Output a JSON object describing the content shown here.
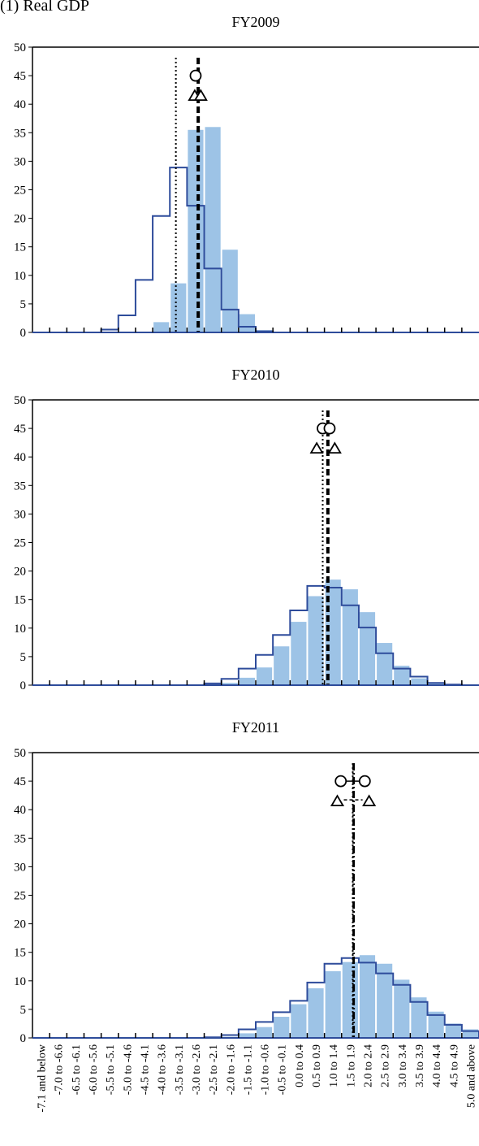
{
  "figure_title": "(1) Real GDP",
  "chart_data": [
    {
      "type": "bar",
      "title": "FY2009",
      "categories": [
        "-7.1 and below",
        "-7.0 to -6.6",
        "-6.5 to -6.1",
        "-6.0 to -5.6",
        "-5.5 to -5.1",
        "-5.0 to -4.6",
        "-4.5 to -4.1",
        "-4.0 to -3.6",
        "-3.5 to -3.1",
        "-3.0 to -2.6",
        "-2.5 to -2.1",
        "-2.0 to -1.6",
        "-1.5 to -1.1",
        "-1.0 to -0.6",
        "-0.5 to -0.1",
        "0.0 to 0.4",
        "0.5 to 0.9",
        "1.0 to 1.4",
        "1.5 to 1.9",
        "2.0 to 2.4",
        "2.5 to 2.9",
        "3.0 to 3.4",
        "3.5 to 3.9",
        "4.0 to 4.4",
        "4.5 to 4.9",
        "5.0 and above"
      ],
      "series": [
        {
          "style": "filled-bars",
          "color": "#9dc3e6",
          "values": [
            0,
            0,
            0,
            0,
            0,
            0,
            0,
            1.8,
            8.6,
            35.5,
            36.0,
            14.5,
            3.2,
            0.4,
            0,
            0,
            0,
            0,
            0,
            0,
            0,
            0,
            0,
            0,
            0,
            0
          ]
        },
        {
          "style": "step-outline",
          "color": "#2e4c9b",
          "values": [
            0,
            0,
            0,
            0,
            0.5,
            3.0,
            9.2,
            20.4,
            28.9,
            22.2,
            11.2,
            4.0,
            1.0,
            0.2,
            0,
            0,
            0,
            0,
            0,
            0,
            0,
            0,
            0,
            0,
            0,
            0
          ]
        }
      ],
      "vlines": [
        {
          "style": "dotted",
          "x_category_pos": 8.35
        },
        {
          "style": "dashed",
          "x_category_pos": 9.65
        }
      ],
      "markers": [
        {
          "shape": "circle",
          "x_category_pos": 9.5,
          "y": 45
        },
        {
          "shape": "triangle",
          "x_category_pos": 9.45,
          "y": 42
        },
        {
          "shape": "triangle",
          "x_category_pos": 9.8,
          "y": 42
        }
      ],
      "ylim": [
        0,
        50
      ],
      "yticks": [
        "0",
        "5",
        "10",
        "15",
        "20",
        "25",
        "30",
        "35",
        "40",
        "45",
        "50"
      ]
    },
    {
      "type": "bar",
      "title": "FY2010",
      "categories": [
        "-7.1 and below",
        "-7.0 to -6.6",
        "-6.5 to -6.1",
        "-6.0 to -5.6",
        "-5.5 to -5.1",
        "-5.0 to -4.6",
        "-4.5 to -4.1",
        "-4.0 to -3.6",
        "-3.5 to -3.1",
        "-3.0 to -2.6",
        "-2.5 to -2.1",
        "-2.0 to -1.6",
        "-1.5 to -1.1",
        "-1.0 to -0.6",
        "-0.5 to -0.1",
        "0.0 to 0.4",
        "0.5 to 0.9",
        "1.0 to 1.4",
        "1.5 to 1.9",
        "2.0 to 2.4",
        "2.5 to 2.9",
        "3.0 to 3.4",
        "3.5 to 3.9",
        "4.0 to 4.4",
        "4.5 to 4.9",
        "5.0 and above"
      ],
      "series": [
        {
          "style": "filled-bars",
          "color": "#9dc3e6",
          "values": [
            0,
            0,
            0,
            0,
            0,
            0,
            0,
            0,
            0,
            0,
            0.1,
            0.4,
            1.3,
            3.1,
            6.8,
            11.1,
            15.6,
            18.5,
            16.8,
            12.8,
            7.4,
            3.4,
            1.2,
            0.3,
            0.1,
            0
          ]
        },
        {
          "style": "step-outline",
          "color": "#2e4c9b",
          "values": [
            0,
            0,
            0,
            0,
            0,
            0,
            0,
            0,
            0,
            0,
            0.3,
            1.1,
            2.9,
            5.3,
            8.8,
            13.1,
            17.4,
            17.1,
            14.0,
            10.1,
            5.6,
            2.9,
            1.5,
            0.4,
            0.1,
            0
          ]
        }
      ],
      "vlines": [
        {
          "style": "dotted",
          "x_category_pos": 16.9
        },
        {
          "style": "dashed",
          "x_category_pos": 17.2
        }
      ],
      "markers": [
        {
          "shape": "circle",
          "x_category_pos": 16.9,
          "y": 45
        },
        {
          "shape": "circle",
          "x_category_pos": 17.3,
          "y": 45
        },
        {
          "shape": "triangle",
          "x_category_pos": 16.55,
          "y": 42
        },
        {
          "shape": "triangle",
          "x_category_pos": 17.6,
          "y": 42
        }
      ],
      "ylim": [
        0,
        50
      ],
      "yticks": [
        "0",
        "5",
        "10",
        "15",
        "20",
        "25",
        "30",
        "35",
        "40",
        "45",
        "50"
      ]
    },
    {
      "type": "bar",
      "title": "FY2011",
      "categories": [
        "-7.1 and below",
        "-7.0 to -6.6",
        "-6.5 to -6.1",
        "-6.0 to -5.6",
        "-5.5 to -5.1",
        "-5.0 to -4.6",
        "-4.5 to -4.1",
        "-4.0 to -3.6",
        "-3.5 to -3.1",
        "-3.0 to -2.6",
        "-2.5 to -2.1",
        "-2.0 to -1.6",
        "-1.5 to -1.1",
        "-1.0 to -0.6",
        "-0.5 to -0.1",
        "0.0 to 0.4",
        "0.5 to 0.9",
        "1.0 to 1.4",
        "1.5 to 1.9",
        "2.0 to 2.4",
        "2.5 to 2.9",
        "3.0 to 3.4",
        "3.5 to 3.9",
        "4.0 to 4.4",
        "4.5 to 4.9",
        "5.0 and above"
      ],
      "series": [
        {
          "style": "filled-bars",
          "color": "#9dc3e6",
          "values": [
            0,
            0,
            0,
            0,
            0,
            0,
            0,
            0,
            0,
            0,
            0,
            0.2,
            0.8,
            1.9,
            3.7,
            5.9,
            8.7,
            11.7,
            13.3,
            14.5,
            13.0,
            10.2,
            7.1,
            4.6,
            2.5,
            1.5
          ]
        },
        {
          "style": "step-outline",
          "color": "#2e4c9b",
          "values": [
            0,
            0,
            0,
            0,
            0,
            0,
            0,
            0,
            0,
            0,
            0.1,
            0.5,
            1.5,
            2.8,
            4.5,
            6.5,
            9.7,
            13.0,
            14.0,
            13.2,
            11.3,
            9.3,
            6.3,
            4.0,
            2.3,
            1.2
          ]
        }
      ],
      "vlines": [
        {
          "style": "dotted",
          "x_category_pos": 18.65
        },
        {
          "style": "dashdot",
          "x_category_pos": 18.7
        }
      ],
      "markers": [
        {
          "shape": "circle",
          "x_category_pos": 17.95,
          "y": 45
        },
        {
          "shape": "circle",
          "x_category_pos": 19.35,
          "y": 45
        },
        {
          "shape": "triangle",
          "x_category_pos": 17.75,
          "y": 42
        },
        {
          "shape": "triangle",
          "x_category_pos": 19.6,
          "y": 42
        }
      ],
      "ylim": [
        0,
        50
      ],
      "yticks": [
        "0",
        "5",
        "10",
        "15",
        "20",
        "25",
        "30",
        "35",
        "40",
        "45",
        "50"
      ]
    }
  ]
}
